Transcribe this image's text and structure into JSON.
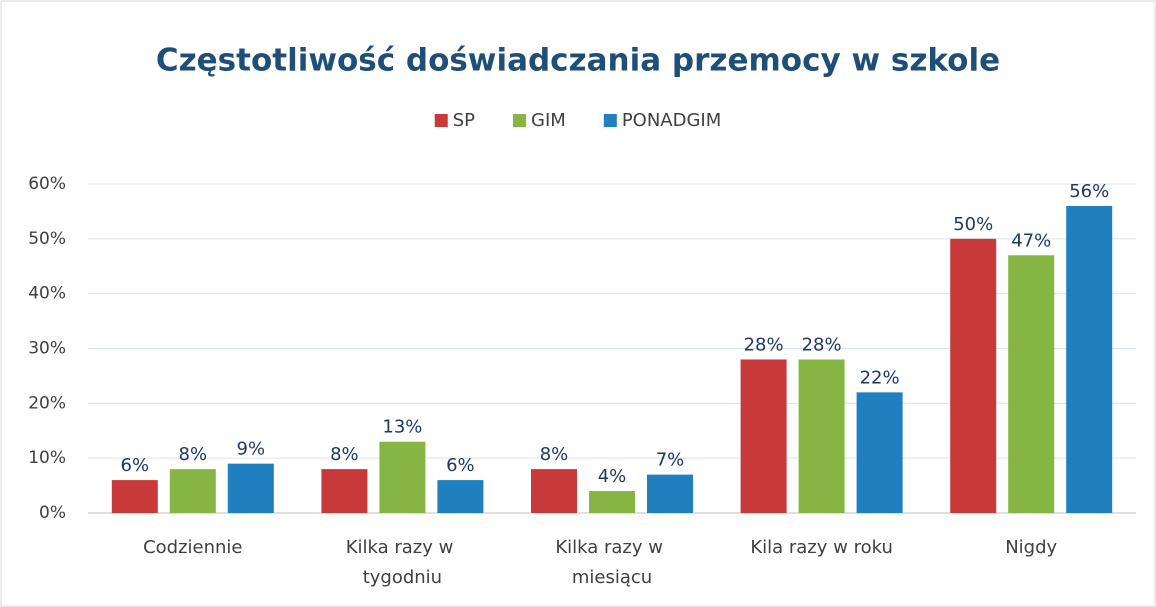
{
  "chart_data": {
    "type": "bar",
    "title": "Częstotliwość doświadczania przemocy w szkole",
    "categories": [
      "Codziennie",
      "Kilka razy w tygodniu",
      "Kilka razy w miesiącu",
      "Kila razy w roku",
      "Nigdy"
    ],
    "series": [
      {
        "name": "SP",
        "color": "#c8393a",
        "values": [
          6,
          8,
          8,
          28,
          50
        ],
        "value_labels": [
          "6%",
          "8%",
          "8%",
          "28%",
          "50%"
        ]
      },
      {
        "name": "GIM",
        "color": "#86b544",
        "values": [
          8,
          13,
          4,
          28,
          47
        ],
        "value_labels": [
          "8%",
          "13%",
          "4%",
          "28%",
          "47%"
        ]
      },
      {
        "name": "PONADGIM",
        "color": "#1f7fbf",
        "values": [
          9,
          6,
          7,
          22,
          56
        ],
        "value_labels": [
          "9%",
          "6%",
          "7%",
          "22%",
          "56%"
        ]
      }
    ],
    "ylim": [
      0,
      60
    ],
    "yticks": [
      {
        "value": 0,
        "label": "0%"
      },
      {
        "value": 10,
        "label": "10%"
      },
      {
        "value": 20,
        "label": "20%"
      },
      {
        "value": 30,
        "label": "30%"
      },
      {
        "value": 40,
        "label": "40%"
      },
      {
        "value": 50,
        "label": "50%"
      },
      {
        "value": 60,
        "label": "60%"
      }
    ],
    "grid": true,
    "legend": "top"
  }
}
